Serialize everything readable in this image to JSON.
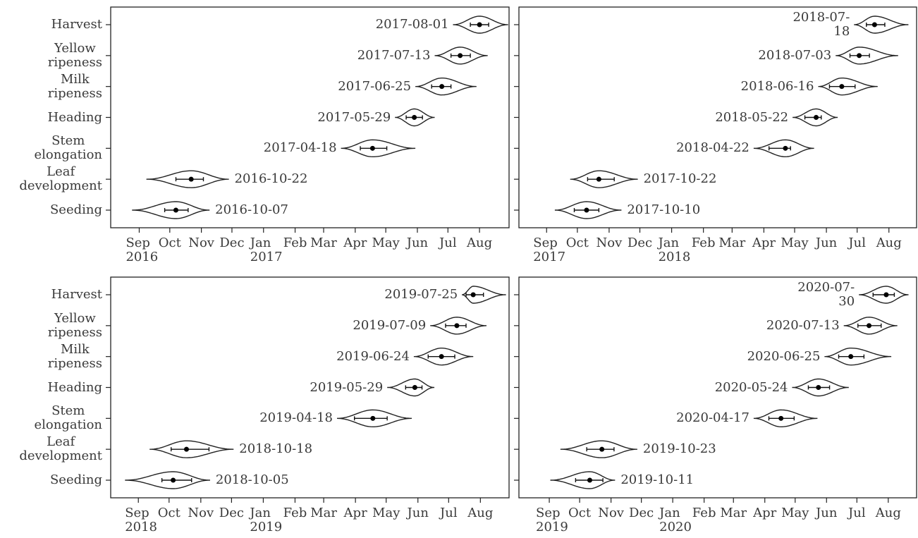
{
  "chart_data": [
    {
      "type": "violin",
      "categories": [
        "Harvest",
        "Yellow\nripeness",
        "Milk\nripeness",
        "Heading",
        "Stem\nelongation",
        "Leaf\ndevelopment",
        "Seeding"
      ],
      "values": [
        "2017-08-01",
        "2017-07-13",
        "2017-06-25",
        "2017-05-29",
        "2017-04-18",
        "2016-10-22",
        "2016-10-07"
      ],
      "q1": [
        "2017-07-23",
        "2017-07-04",
        "2017-06-15",
        "2017-05-21",
        "2017-04-06",
        "2016-10-07",
        "2016-09-26"
      ],
      "q3": [
        "2017-08-10",
        "2017-07-23",
        "2017-07-04",
        "2017-06-06",
        "2017-05-02",
        "2016-11-03",
        "2016-10-19"
      ],
      "min": [
        "2017-07-06",
        "2017-06-18",
        "2017-05-30",
        "2017-05-10",
        "2017-03-18",
        "2016-09-08",
        "2016-08-25"
      ],
      "max": [
        "2017-08-29",
        "2017-08-09",
        "2017-07-29",
        "2017-06-18",
        "2017-05-30",
        "2016-11-28",
        "2016-11-09"
      ],
      "xlim": [
        "2016-08-04",
        "2017-08-30"
      ],
      "xticks": [
        {
          "value": "2016-09-01",
          "label": "Sep\n2016"
        },
        {
          "value": "2016-10-01",
          "label": "Oct"
        },
        {
          "value": "2016-11-01",
          "label": "Nov"
        },
        {
          "value": "2016-12-01",
          "label": "Dec"
        },
        {
          "value": "2017-01-01",
          "label": "Jan\n2017"
        },
        {
          "value": "2017-02-01",
          "label": "Feb"
        },
        {
          "value": "2017-03-01",
          "label": "Mar"
        },
        {
          "value": "2017-04-01",
          "label": "Apr"
        },
        {
          "value": "2017-05-01",
          "label": "May"
        },
        {
          "value": "2017-06-01",
          "label": "Jun"
        },
        {
          "value": "2017-07-01",
          "label": "Jul"
        },
        {
          "value": "2017-08-01",
          "label": "Aug"
        }
      ]
    },
    {
      "type": "violin",
      "values": [
        "2018-07-18",
        "2018-07-03",
        "2018-06-16",
        "2018-05-22",
        "2018-04-22",
        "2017-10-22",
        "2017-10-10"
      ],
      "q1": [
        "2018-07-10",
        "2018-06-24",
        "2018-06-04",
        "2018-05-11",
        "2018-04-06",
        "2017-10-11",
        "2017-09-28"
      ],
      "q3": [
        "2018-07-28",
        "2018-07-13",
        "2018-06-29",
        "2018-05-27",
        "2018-04-27",
        "2017-11-06",
        "2017-10-22"
      ],
      "min": [
        "2018-06-28",
        "2018-06-10",
        "2018-05-24",
        "2018-04-29",
        "2018-03-22",
        "2017-09-24",
        "2017-09-09"
      ],
      "max": [
        "2018-08-20",
        "2018-08-10",
        "2018-07-21",
        "2018-06-12",
        "2018-05-20",
        "2017-11-29",
        "2017-11-13"
      ],
      "xlim": [
        "2017-08-05",
        "2018-08-28"
      ],
      "xticks": [
        {
          "value": "2017-09-01",
          "label": "Sep\n2017"
        },
        {
          "value": "2017-10-01",
          "label": "Oct"
        },
        {
          "value": "2017-11-01",
          "label": "Nov"
        },
        {
          "value": "2017-12-01",
          "label": "Dec"
        },
        {
          "value": "2018-01-01",
          "label": "Jan\n2018"
        },
        {
          "value": "2018-02-01",
          "label": "Feb"
        },
        {
          "value": "2018-03-01",
          "label": "Mar"
        },
        {
          "value": "2018-04-01",
          "label": "Apr"
        },
        {
          "value": "2018-05-01",
          "label": "May"
        },
        {
          "value": "2018-06-01",
          "label": "Jun"
        },
        {
          "value": "2018-07-01",
          "label": "Jul"
        },
        {
          "value": "2018-08-01",
          "label": "Aug"
        }
      ]
    },
    {
      "type": "violin",
      "categories": [
        "Harvest",
        "Yellow\nripeness",
        "Milk\nripeness",
        "Heading",
        "Stem\nelongation",
        "Leaf\ndevelopment",
        "Seeding"
      ],
      "values": [
        "2019-07-25",
        "2019-07-09",
        "2019-06-24",
        "2019-05-29",
        "2019-04-18",
        "2018-10-18",
        "2018-10-05"
      ],
      "q1": [
        "2019-07-18",
        "2019-06-28",
        "2019-06-11",
        "2019-05-20",
        "2019-03-31",
        "2018-10-03",
        "2018-09-24"
      ],
      "q3": [
        "2019-08-04",
        "2019-07-18",
        "2019-07-07",
        "2019-06-05",
        "2019-05-02",
        "2018-11-09",
        "2018-10-23"
      ],
      "min": [
        "2019-07-14",
        "2019-06-13",
        "2019-05-28",
        "2019-05-02",
        "2019-03-14",
        "2018-09-12",
        "2018-08-19"
      ],
      "max": [
        "2019-08-26",
        "2019-08-07",
        "2019-07-25",
        "2019-06-17",
        "2019-05-26",
        "2018-12-03",
        "2018-11-10"
      ],
      "xlim": [
        "2018-08-05",
        "2019-08-29"
      ],
      "xticks": [
        {
          "value": "2018-09-01",
          "label": "Sep\n2018"
        },
        {
          "value": "2018-10-01",
          "label": "Oct"
        },
        {
          "value": "2018-11-01",
          "label": "Nov"
        },
        {
          "value": "2018-12-01",
          "label": "Dec"
        },
        {
          "value": "2019-01-01",
          "label": "Jan\n2019"
        },
        {
          "value": "2019-02-01",
          "label": "Feb"
        },
        {
          "value": "2019-03-01",
          "label": "Mar"
        },
        {
          "value": "2019-04-01",
          "label": "Apr"
        },
        {
          "value": "2019-05-01",
          "label": "May"
        },
        {
          "value": "2019-06-01",
          "label": "Jun"
        },
        {
          "value": "2019-07-01",
          "label": "Jul"
        },
        {
          "value": "2019-08-01",
          "label": "Aug"
        }
      ]
    },
    {
      "type": "violin",
      "values": [
        "2020-07-30",
        "2020-07-13",
        "2020-06-25",
        "2020-05-24",
        "2020-04-17",
        "2019-10-23",
        "2019-10-11"
      ],
      "q1": [
        "2020-07-17",
        "2020-07-02",
        "2020-06-13",
        "2020-05-14",
        "2020-04-05",
        "2019-10-08",
        "2019-09-27"
      ],
      "q3": [
        "2020-08-07",
        "2020-07-25",
        "2020-07-08",
        "2020-06-04",
        "2020-04-30",
        "2019-11-04",
        "2019-10-24"
      ],
      "min": [
        "2020-07-03",
        "2020-06-18",
        "2020-05-30",
        "2020-04-28",
        "2020-03-21",
        "2019-09-12",
        "2019-09-02"
      ],
      "max": [
        "2020-08-21",
        "2020-08-10",
        "2020-08-04",
        "2020-06-23",
        "2020-05-23",
        "2019-11-27",
        "2019-11-05"
      ],
      "xlim": [
        "2019-08-02",
        "2020-08-29"
      ],
      "xticks": [
        {
          "value": "2019-09-01",
          "label": "Sep\n2019"
        },
        {
          "value": "2019-10-01",
          "label": "Oct"
        },
        {
          "value": "2019-11-01",
          "label": "Nov"
        },
        {
          "value": "2019-12-01",
          "label": "Dec"
        },
        {
          "value": "2020-01-01",
          "label": "Jan\n2020"
        },
        {
          "value": "2020-02-01",
          "label": "Feb"
        },
        {
          "value": "2020-03-01",
          "label": "Mar"
        },
        {
          "value": "2020-04-01",
          "label": "Apr"
        },
        {
          "value": "2020-05-01",
          "label": "May"
        },
        {
          "value": "2020-06-01",
          "label": "Jun"
        },
        {
          "value": "2020-07-01",
          "label": "Jul"
        },
        {
          "value": "2020-08-01",
          "label": "Aug"
        }
      ]
    }
  ]
}
